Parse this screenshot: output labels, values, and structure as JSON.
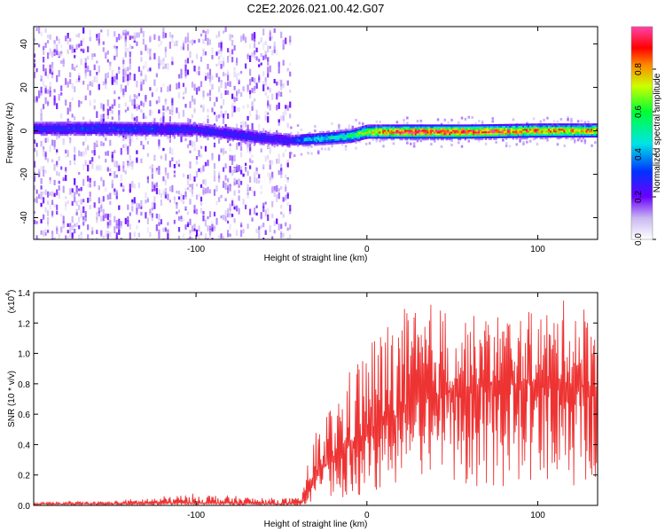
{
  "title": "C2E2.2026.021.00.42.G07",
  "chart_data": [
    {
      "type": "heatmap",
      "xlabel": "Height of straight line (km)",
      "ylabel": "Frequency (Hz)",
      "xlim": [
        -195,
        135
      ],
      "ylim": [
        -50,
        48
      ],
      "x_ticks": [
        -100,
        0,
        100
      ],
      "y_ticks": [
        -40,
        -20,
        0,
        20,
        40
      ],
      "colorbar": {
        "label": "Normalized spectral amplitude",
        "range": [
          0,
          1
        ],
        "ticks": [
          "0.0",
          "0.2",
          "0.4",
          "0.6",
          "0.8"
        ]
      },
      "ridge": {
        "description_x": [
          -195,
          -150,
          -100,
          -60,
          -45,
          -35,
          -25,
          -10,
          0,
          20,
          60,
          100,
          135
        ],
        "y": [
          1.5,
          1.5,
          1.0,
          -3,
          -4,
          -3.5,
          -3,
          -2,
          0,
          0,
          0,
          0.5,
          0.5
        ],
        "peak_amplitude": [
          0.3,
          0.35,
          0.3,
          0.3,
          0.3,
          0.45,
          0.5,
          0.6,
          0.8,
          1.0,
          1.0,
          0.9,
          0.85
        ]
      }
    },
    {
      "type": "line",
      "xlabel": "Height of straight line (km)",
      "ylabel": "SNR (10 * v/v)",
      "y_scale_label": "(x10",
      "y_scale_exp": "4",
      "xlim": [
        -195,
        135
      ],
      "ylim": [
        0,
        1.4
      ],
      "x_ticks": [
        -100,
        0,
        100
      ],
      "y_ticks": [
        "0.0",
        "0.2",
        "0.4",
        "0.6",
        "0.8",
        "1.0",
        "1.2",
        "1.4"
      ],
      "series": [
        {
          "color": "#ee3333",
          "x": [
            -195,
            -150,
            -100,
            -60,
            -40,
            -35,
            -30,
            -20,
            -10,
            0,
            10,
            20,
            30,
            40,
            50,
            60,
            70,
            80,
            90,
            100,
            110,
            120,
            130,
            135
          ],
          "y": [
            0.01,
            0.01,
            0.015,
            0.01,
            0.01,
            0.05,
            0.2,
            0.3,
            0.4,
            0.45,
            0.55,
            0.6,
            0.68,
            0.72,
            0.75,
            0.78,
            0.8,
            0.8,
            0.8,
            0.82,
            0.82,
            0.8,
            0.78,
            0.78
          ],
          "y_peak": [
            0.02,
            0.03,
            0.08,
            0.05,
            0.05,
            0.25,
            0.5,
            0.7,
            0.9,
            1.1,
            1.2,
            1.3,
            1.3,
            1.35,
            1.3,
            1.25,
            1.25,
            1.3,
            1.25,
            1.3,
            1.3,
            1.4,
            1.3,
            1.25
          ]
        }
      ]
    }
  ]
}
